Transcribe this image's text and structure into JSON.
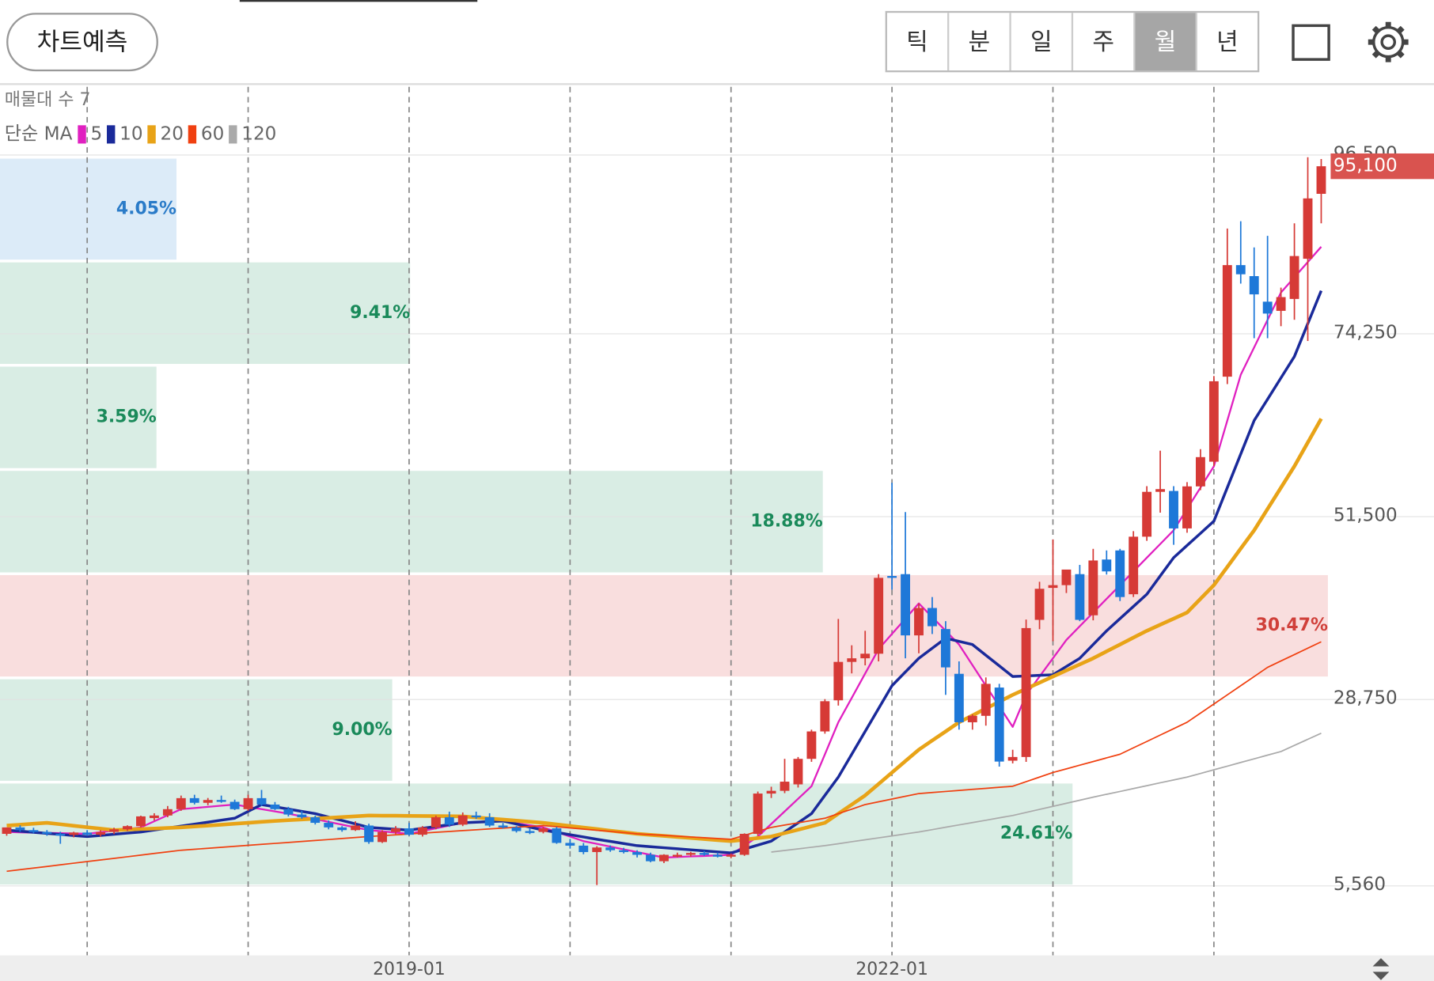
{
  "header": {
    "predict_button": "차트예측",
    "tabs": [
      "틱",
      "분",
      "일",
      "주",
      "월",
      "년"
    ],
    "selected_tab": 4
  },
  "chart_data": {
    "type": "candlestick",
    "categories": [
      null,
      null,
      null,
      null,
      null,
      null,
      null,
      null,
      null,
      null,
      null,
      null,
      null,
      null,
      null,
      null,
      null,
      null,
      null,
      null,
      null,
      null,
      null,
      null,
      null,
      null,
      null,
      null,
      null,
      null,
      "2019-01",
      null,
      null,
      null,
      null,
      null,
      null,
      null,
      null,
      null,
      null,
      null,
      null,
      null,
      null,
      null,
      null,
      null,
      null,
      null,
      null,
      null,
      null,
      null,
      null,
      null,
      null,
      null,
      null,
      null,
      null,
      null,
      null,
      null,
      null,
      null,
      "2022-01",
      null,
      null,
      null,
      null,
      null,
      null,
      null,
      null,
      null,
      null,
      null,
      null,
      null,
      null,
      null,
      null,
      null,
      null,
      null,
      null,
      null,
      null,
      null,
      null,
      null,
      null,
      null,
      null,
      null,
      null,
      null,
      null
    ],
    "year_grid": true,
    "candles": [
      [
        12040,
        12600,
        11800,
        12840
      ],
      [
        12840,
        13100,
        12300,
        12500
      ],
      [
        12500,
        12800,
        12100,
        12270
      ],
      [
        12270,
        12500,
        11800,
        12040
      ],
      [
        12040,
        12300,
        10800,
        11900
      ],
      [
        11900,
        12300,
        11600,
        12200
      ],
      [
        12200,
        12500,
        11800,
        11930
      ],
      [
        11930,
        12500,
        11700,
        12270
      ],
      [
        12270,
        12800,
        12000,
        12600
      ],
      [
        12600,
        13100,
        12400,
        13000
      ],
      [
        13000,
        14300,
        12800,
        14210
      ],
      [
        14000,
        14600,
        13700,
        14320
      ],
      [
        14320,
        15500,
        14100,
        15110
      ],
      [
        15110,
        16800,
        14900,
        16480
      ],
      [
        16480,
        16900,
        15700,
        15900
      ],
      [
        15900,
        16500,
        15600,
        16250
      ],
      [
        16250,
        16800,
        15900,
        16020
      ],
      [
        16020,
        16300,
        15000,
        15110
      ],
      [
        15110,
        16900,
        14900,
        16480
      ],
      [
        16480,
        17500,
        15500,
        15680
      ],
      [
        15680,
        16000,
        15000,
        15110
      ],
      [
        15110,
        15400,
        14200,
        14440
      ],
      [
        14440,
        14900,
        13900,
        14100
      ],
      [
        14100,
        14300,
        13200,
        13410
      ],
      [
        13410,
        13700,
        12600,
        12840
      ],
      [
        12840,
        13000,
        12300,
        12500
      ],
      [
        12500,
        13600,
        12400,
        13070
      ],
      [
        13070,
        13300,
        10800,
        11020
      ],
      [
        11020,
        12500,
        10900,
        12270
      ],
      [
        12270,
        13000,
        12000,
        12720
      ],
      [
        12720,
        13400,
        11800,
        11930
      ],
      [
        11930,
        13000,
        11700,
        12840
      ],
      [
        12840,
        14300,
        12600,
        14100
      ],
      [
        14100,
        14800,
        12900,
        13180
      ],
      [
        13180,
        14700,
        13000,
        14320
      ],
      [
        14320,
        14800,
        13900,
        14100
      ],
      [
        14100,
        14600,
        12900,
        13070
      ],
      [
        13070,
        13400,
        12700,
        12840
      ],
      [
        12840,
        13000,
        12200,
        12380
      ],
      [
        12380,
        12700,
        12000,
        12270
      ],
      [
        12270,
        12900,
        12100,
        12720
      ],
      [
        12720,
        12900,
        10800,
        10910
      ],
      [
        10910,
        11400,
        10200,
        10570
      ],
      [
        10570,
        10900,
        9500,
        9770
      ],
      [
        9770,
        10500,
        5670,
        10340
      ],
      [
        10340,
        10600,
        9800,
        10000
      ],
      [
        10000,
        10300,
        9600,
        9770
      ],
      [
        9770,
        10000,
        9100,
        9430
      ],
      [
        9430,
        9700,
        8500,
        8630
      ],
      [
        8630,
        9500,
        8400,
        9430
      ],
      [
        9320,
        9700,
        9100,
        9430
      ],
      [
        9430,
        9800,
        9200,
        9660
      ],
      [
        9660,
        9900,
        9300,
        9430
      ],
      [
        9430,
        9700,
        9100,
        9200
      ],
      [
        9200,
        9600,
        9000,
        9430
      ],
      [
        9430,
        12100,
        9300,
        12040
      ],
      [
        12040,
        17300,
        11800,
        17050
      ],
      [
        17050,
        17900,
        16500,
        17390
      ],
      [
        17390,
        21370,
        17100,
        18530
      ],
      [
        18190,
        21600,
        17800,
        21370
      ],
      [
        21370,
        25000,
        21000,
        24780
      ],
      [
        24780,
        28800,
        24500,
        28540
      ],
      [
        28650,
        38770,
        28000,
        33430
      ],
      [
        33430,
        35500,
        32000,
        33880
      ],
      [
        33880,
        37300,
        33000,
        34450
      ],
      [
        34450,
        44350,
        33500,
        43890
      ],
      [
        44120,
        55720,
        42420,
        43890
      ],
      [
        44350,
        52080,
        33880,
        36730
      ],
      [
        36730,
        40710,
        34500,
        40140
      ],
      [
        40140,
        41500,
        36900,
        37870
      ],
      [
        37520,
        38500,
        29330,
        32750
      ],
      [
        31950,
        33500,
        25000,
        25920
      ],
      [
        25920,
        26900,
        25000,
        26720
      ],
      [
        26720,
        31500,
        25500,
        30700
      ],
      [
        30240,
        30700,
        20400,
        21030
      ],
      [
        21140,
        22500,
        20800,
        21600
      ],
      [
        21600,
        38700,
        21000,
        37640
      ],
      [
        38660,
        43400,
        37500,
        42530
      ],
      [
        42640,
        48670,
        36000,
        42980
      ],
      [
        42980,
        44900,
        42000,
        44920
      ],
      [
        44350,
        45500,
        38500,
        38660
      ],
      [
        39230,
        47500,
        38600,
        46050
      ],
      [
        46170,
        47300,
        44300,
        44690
      ],
      [
        47300,
        47500,
        41000,
        41500
      ],
      [
        41850,
        49700,
        41500,
        49010
      ],
      [
        49010,
        55300,
        48500,
        54590
      ],
      [
        54590,
        59710,
        52000,
        54930
      ],
      [
        54700,
        55300,
        48000,
        50040
      ],
      [
        50040,
        55800,
        49500,
        55270
      ],
      [
        55270,
        59900,
        54800,
        58910
      ],
      [
        58340,
        69000,
        57800,
        68350
      ],
      [
        68920,
        87350,
        68000,
        82800
      ],
      [
        82800,
        88260,
        80500,
        81660
      ],
      [
        81430,
        85000,
        73700,
        79160
      ],
      [
        78250,
        86440,
        73700,
        76770
      ],
      [
        77110,
        80000,
        75200,
        78820
      ],
      [
        78590,
        88000,
        76000,
        83930
      ],
      [
        83590,
        96220,
        73360,
        91100
      ],
      [
        91670,
        96000,
        88000,
        95100
      ]
    ],
    "up_color": "#d63a36",
    "down_color": "#1e78d8",
    "ma_label": "단순 MA",
    "series": [
      {
        "name": "5",
        "color": "#e020c0",
        "width": 2,
        "values": [
          12270,
          12230,
          12190,
          12160,
          12120,
          12080,
          12040,
          12240,
          12440,
          12640,
          12840,
          13600,
          14350,
          15110,
          15250,
          15400,
          15540,
          15680,
          15400,
          15110,
          14830,
          14550,
          14220,
          13870,
          13530,
          13180,
          12840,
          12500,
          12350,
          12190,
          12040,
          12380,
          12730,
          13070,
          13410,
          13490,
          13560,
          13640,
          13370,
          13110,
          12840,
          12270,
          11700,
          11130,
          10790,
          10450,
          10110,
          9770,
          9430,
          9090,
          9160,
          9230,
          9290,
          9360,
          9430,
          10570,
          11700,
          13270,
          14830,
          16400,
          17960,
          21940,
          25920,
          28950,
          31990,
          35020,
          36920,
          38810,
          40710,
          39000,
          37300,
          35590,
          33030,
          30470,
          27910,
          25350,
          29330,
          31610,
          33880,
          36160,
          37870,
          39570,
          41280,
          42980,
          44690,
          46400,
          48100,
          49810,
          52460,
          55120,
          57770,
          63460,
          69150,
          72560,
          75980,
          79390,
          81290,
          83180,
          85080
        ]
      },
      {
        "name": "10",
        "color": "#1a2a9a",
        "width": 3,
        "values": [
          12500,
          12370,
          12230,
          12100,
          11970,
          11830,
          11700,
          11840,
          11990,
          12130,
          12270,
          12510,
          12760,
          13000,
          13250,
          13490,
          13740,
          13980,
          14830,
          15680,
          15400,
          15120,
          14830,
          14550,
          14120,
          13700,
          13270,
          12840,
          12730,
          12610,
          12500,
          12730,
          12950,
          13180,
          13410,
          13490,
          13560,
          13640,
          13260,
          12880,
          12500,
          12220,
          11930,
          11650,
          11360,
          11100,
          10830,
          10570,
          10440,
          10310,
          10180,
          10050,
          9920,
          9790,
          9660,
          10150,
          10640,
          11130,
          12270,
          13410,
          14550,
          16830,
          19100,
          21940,
          24780,
          27630,
          30470,
          32180,
          33880,
          35130,
          36380,
          35990,
          35590,
          34260,
          32940,
          31610,
          31680,
          31760,
          31830,
          32860,
          33880,
          35590,
          37300,
          38820,
          40330,
          41850,
          44130,
          46400,
          47920,
          49430,
          50950,
          55120,
          59290,
          63460,
          66110,
          68770,
          71420,
          75520,
          79610
        ]
      },
      {
        "name": "20",
        "color": "#e8a317",
        "width": 4,
        "values": [
          13070,
          13180,
          13300,
          13410,
          13230,
          13040,
          12860,
          12680,
          12500,
          12570,
          12640,
          12700,
          12770,
          12840,
          12950,
          13070,
          13180,
          13300,
          13410,
          13530,
          13640,
          13740,
          13830,
          13930,
          14030,
          14120,
          14220,
          14320,
          14300,
          14290,
          14270,
          14260,
          14240,
          14230,
          14210,
          14080,
          13940,
          13810,
          13680,
          13540,
          13410,
          13210,
          13020,
          12820,
          12630,
          12430,
          12240,
          12040,
          11910,
          11780,
          11650,
          11520,
          11390,
          11260,
          11130,
          11320,
          11510,
          11700,
          12130,
          12550,
          12980,
          13410,
          14550,
          15680,
          16820,
          18240,
          19670,
          21090,
          22510,
          23650,
          24780,
          25920,
          26770,
          27630,
          28480,
          29330,
          30090,
          30850,
          31610,
          32370,
          33120,
          33880,
          34740,
          35590,
          36450,
          37300,
          38060,
          38810,
          39570,
          41280,
          42980,
          45250,
          47530,
          49800,
          52460,
          55110,
          57770,
          60730,
          63690
        ]
      },
      {
        "name": "60",
        "color": "#f04010",
        "width": 1.5,
        "values": [
          7380,
          7580,
          7780,
          7980,
          8190,
          8390,
          8590,
          8790,
          8990,
          9190,
          9390,
          9600,
          9800,
          10000,
          10120,
          10240,
          10360,
          10490,
          10610,
          10730,
          10850,
          10970,
          11090,
          11210,
          11330,
          11460,
          11580,
          11700,
          11810,
          11910,
          12020,
          12120,
          12230,
          12330,
          12440,
          12540,
          12650,
          12750,
          12860,
          12960,
          13070,
          12920,
          12780,
          12630,
          12480,
          12340,
          12190,
          12040,
          11940,
          11850,
          11750,
          11650,
          11560,
          11460,
          11360,
          11850,
          12350,
          12840,
          13130,
          13410,
          13700,
          13980,
          14550,
          15110,
          15680,
          16020,
          16370,
          16710,
          17050,
          17180,
          17310,
          17440,
          17570,
          17700,
          17830,
          17960,
          18530,
          19100,
          19670,
          20120,
          20580,
          21030,
          21490,
          21940,
          22740,
          23530,
          24330,
          25120,
          25920,
          27060,
          28190,
          29330,
          30470,
          31610,
          32750,
          33550,
          34340,
          35140,
          35930
        ]
      },
      {
        "name": "120",
        "color": "#aaaaaa",
        "width": 1.5,
        "values": [
          null,
          null,
          null,
          null,
          null,
          null,
          null,
          null,
          null,
          null,
          null,
          null,
          null,
          null,
          null,
          null,
          null,
          null,
          null,
          null,
          null,
          null,
          null,
          null,
          null,
          null,
          null,
          null,
          null,
          null,
          null,
          null,
          null,
          null,
          null,
          null,
          null,
          null,
          null,
          null,
          null,
          null,
          null,
          null,
          null,
          null,
          null,
          null,
          null,
          null,
          null,
          null,
          null,
          null,
          null,
          null,
          null,
          9770,
          9970,
          10170,
          10370,
          10570,
          10810,
          11060,
          11300,
          11540,
          11780,
          12030,
          12270,
          12560,
          12860,
          13150,
          13440,
          13730,
          14030,
          14320,
          14700,
          15080,
          15460,
          15840,
          16220,
          16600,
          16960,
          17310,
          17670,
          18030,
          18390,
          18740,
          19100,
          19550,
          20010,
          20460,
          20920,
          21370,
          21830,
          22280,
          23040,
          23800,
          24560
        ]
      }
    ],
    "ylim": [
      -3085,
      104978
    ],
    "yticks": [
      {
        "value": 5560,
        "label": "5,560"
      },
      {
        "value": 28750,
        "label": "28,750"
      },
      {
        "value": 51500,
        "label": "51,500"
      },
      {
        "value": 74250,
        "label": "74,250"
      },
      {
        "value": 96500,
        "label": "96,500"
      }
    ],
    "grid": true,
    "last_price": {
      "value": 95100,
      "label": "95,100",
      "color": "#d9534f"
    },
    "volume_profile": {
      "title": "매물대 수 7",
      "bands": [
        {
          "low": 5560,
          "high": 18470,
          "value": 24.61,
          "label": "24.61%",
          "color": "#d9ede4",
          "text_color": "#1a8a5a"
        },
        {
          "low": 18470,
          "high": 31440,
          "value": 9.0,
          "label": "9.00%",
          "color": "#d9ede4",
          "text_color": "#1a8a5a"
        },
        {
          "low": 31440,
          "high": 44400,
          "value": 30.47,
          "label": "30.47%",
          "color": "#f9dede",
          "text_color": "#d0403a"
        },
        {
          "low": 44400,
          "high": 57370,
          "value": 18.88,
          "label": "18.88%",
          "color": "#d9ede4",
          "text_color": "#1a8a5a"
        },
        {
          "low": 57370,
          "high": 70340,
          "value": 3.59,
          "label": "3.59%",
          "color": "#d9ede4",
          "text_color": "#1a8a5a"
        },
        {
          "low": 70340,
          "high": 83310,
          "value": 9.41,
          "label": "9.41%",
          "color": "#d9ede4",
          "text_color": "#1a8a5a"
        },
        {
          "low": 83310,
          "high": 96220,
          "value": 4.05,
          "label": "4.05%",
          "color": "#dcebf8",
          "text_color": "#2a7bc8"
        }
      ]
    }
  }
}
